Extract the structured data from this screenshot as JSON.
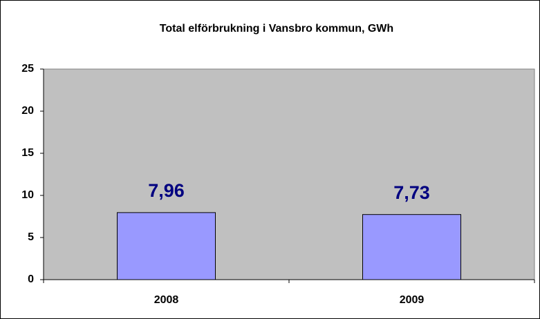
{
  "chart_data": {
    "type": "bar",
    "title": "Total elförbrukning i Vansbro kommun, GWh",
    "categories": [
      "2008",
      "2009"
    ],
    "values": [
      7.96,
      7.73
    ],
    "value_labels": [
      "7,96",
      "7,73"
    ],
    "color": "#9999ff",
    "ylim": [
      0,
      25
    ],
    "yticks": [
      0,
      5,
      10,
      15,
      20,
      25
    ],
    "grid": false
  }
}
